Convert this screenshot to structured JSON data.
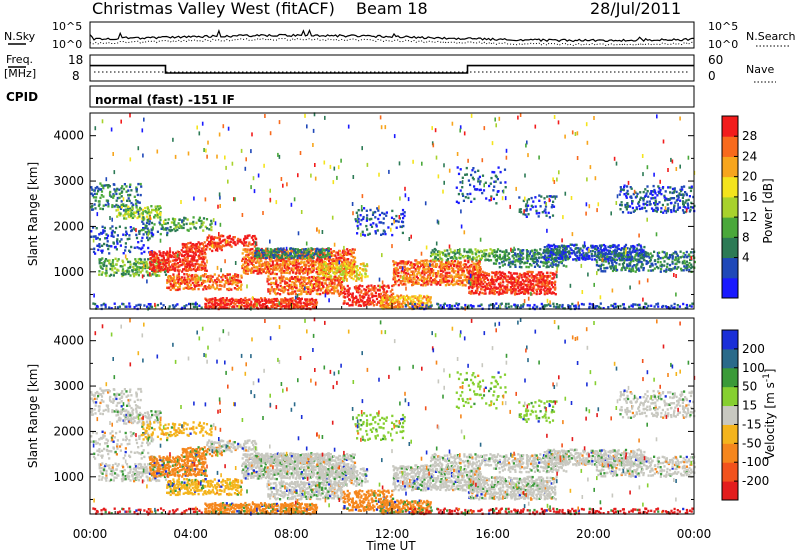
{
  "header": {
    "title": "Christmas Valley West (fitACF)",
    "beam": "Beam 18",
    "date": "28/Jul/2011"
  },
  "strips": {
    "nsky": {
      "label": "N.Sky",
      "left_ticks": [
        "10^5",
        "10^0"
      ],
      "right_label": "N.Search",
      "right_ticks": [
        "10^5",
        "10^0"
      ]
    },
    "freq": {
      "label_line1": "Freq.",
      "label_line2": "[MHz]",
      "left_ticks": [
        "18",
        "8"
      ],
      "right_label": "Nave",
      "right_ticks": [
        "60",
        "0"
      ],
      "step_x": [
        0,
        3,
        3,
        15,
        15,
        24
      ],
      "step_y": [
        14.2,
        14.2,
        10.5,
        10.5,
        14.2,
        14.2
      ]
    },
    "cpid": {
      "label": "CPID",
      "value": "normal (fast) -151 IF"
    }
  },
  "chart_data": [
    {
      "type": "heatmap",
      "panel": "power",
      "ylabel": "Slant Range [km]",
      "xlim": [
        0,
        24
      ],
      "ylim": [
        180,
        4500
      ],
      "y_ticks": [
        1000,
        2000,
        3000,
        4000
      ],
      "colorbar": {
        "label": "Power [dB]",
        "ticks": [
          "4",
          "8",
          "12",
          "16",
          "20",
          "24",
          "28"
        ],
        "colors": [
          "#1a1aff",
          "#1f48b8",
          "#2c7a55",
          "#4aa83a",
          "#a8d22c",
          "#f4e41c",
          "#f7a51c",
          "#f86a1c",
          "#f21c1c"
        ]
      }
    },
    {
      "type": "heatmap",
      "panel": "velocity",
      "xlabel": "Time UT",
      "ylabel": "Slant Range [km]",
      "xlim": [
        0,
        24
      ],
      "ylim": [
        180,
        4500
      ],
      "x_ticks": [
        "00:00",
        "04:00",
        "08:00",
        "12:00",
        "16:00",
        "20:00",
        "00:00"
      ],
      "y_ticks": [
        1000,
        2000,
        3000,
        4000
      ],
      "colorbar": {
        "label_main": "Velocity [m s",
        "label_sup": "-1",
        "label_end": "]",
        "ticks": [
          "200",
          "100",
          "50",
          "15",
          "-15",
          "-50",
          "-100",
          "-200"
        ],
        "colors": [
          "#1a2fd8",
          "#2a6a8a",
          "#3a9a38",
          "#86cf30",
          "#c8c8c0",
          "#f4b41c",
          "#f5861c",
          "#f2521c",
          "#e41c1c"
        ]
      }
    }
  ]
}
